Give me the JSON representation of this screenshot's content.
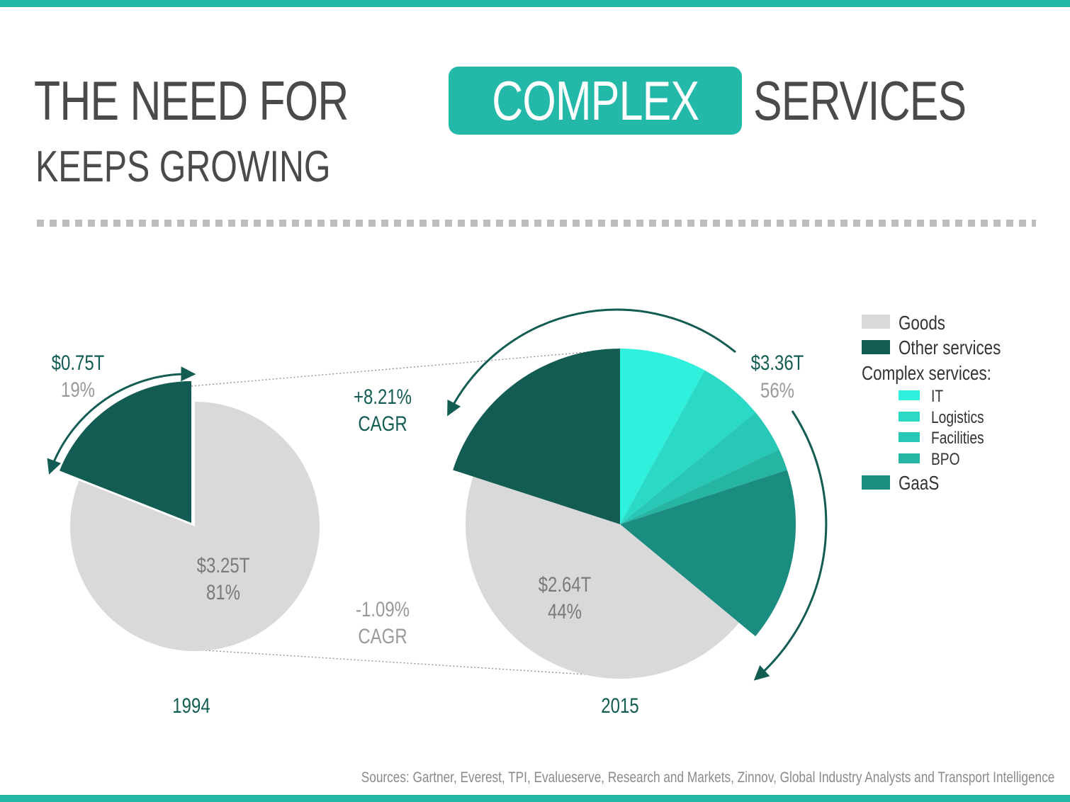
{
  "title": {
    "part1": "THE NEED FOR",
    "highlight": "COMPLEX",
    "part2": "SERVICES",
    "subtitle": "KEEPS GROWING"
  },
  "colors": {
    "accent": "#23b8a8",
    "goods": "#d9d9d9",
    "other_services": "#135c54",
    "it": "#2ff0dd",
    "logistics": "#2ad9c6",
    "facilities": "#28c8b6",
    "bpo": "#26b4a3",
    "gaas": "#1a8c80",
    "label_dark": "#135c54",
    "label_gray": "#9a9a9a"
  },
  "chart_data": {
    "type": "pie",
    "title": "THE NEED FOR COMPLEX SERVICES KEEPS GROWING",
    "legend": {
      "position": "right",
      "items": [
        {
          "key": "goods",
          "label": "Goods"
        },
        {
          "key": "other_services",
          "label": "Other services"
        }
      ],
      "group_label": "Complex services:",
      "group_items": [
        {
          "key": "it",
          "label": "IT"
        },
        {
          "key": "logistics",
          "label": "Logistics"
        },
        {
          "key": "facilities",
          "label": "Facilities"
        },
        {
          "key": "bpo",
          "label": "BPO"
        }
      ],
      "tail_items": [
        {
          "key": "gaas",
          "label": "GaaS"
        }
      ]
    },
    "pies": [
      {
        "year": "1994",
        "services_value": "$0.75T",
        "services_pct": "19%",
        "goods_value": "$3.25T",
        "goods_pct": "81%",
        "slices": [
          {
            "key": "other_services",
            "share": 19
          },
          {
            "key": "goods",
            "share": 81
          }
        ]
      },
      {
        "year": "2015",
        "services_value": "$3.36T",
        "services_pct": "56%",
        "goods_value": "$2.64T",
        "goods_pct": "44%",
        "slices": [
          {
            "key": "it",
            "share": 8
          },
          {
            "key": "logistics",
            "share": 6
          },
          {
            "key": "facilities",
            "share": 4
          },
          {
            "key": "bpo",
            "share": 2
          },
          {
            "key": "gaas",
            "share": 16
          },
          {
            "key": "goods",
            "share": 44
          },
          {
            "key": "other_services",
            "share": 20
          }
        ]
      }
    ],
    "cagr": {
      "services_line1": "+8.21%",
      "services_line2": "CAGR",
      "goods_line1": "-1.09%",
      "goods_line2": "CAGR"
    }
  },
  "sources": "Sources: Gartner, Everest, TPI, Evalueserve, Research and Markets, Zinnov, Global Industry Analysts and Transport Intelligence"
}
